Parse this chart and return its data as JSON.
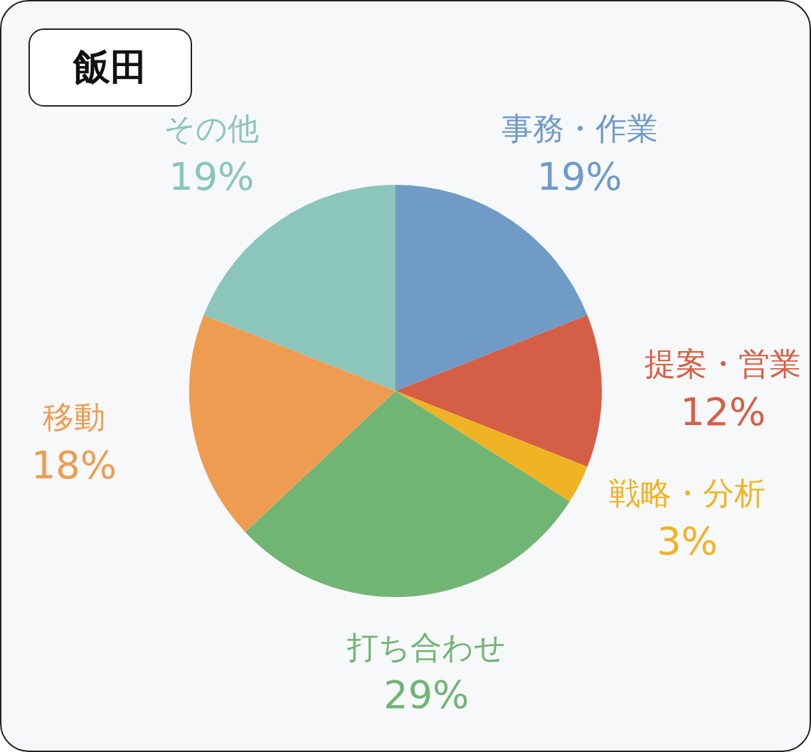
{
  "chart_data": {
    "type": "pie",
    "title": "飯田",
    "categories": [
      "事務・作業",
      "提案・営業",
      "戦略・分析",
      "打ち合わせ",
      "移動",
      "その他"
    ],
    "values": [
      19,
      12,
      3,
      29,
      18,
      19
    ],
    "colors": [
      "#6f9bc6",
      "#d55f46",
      "#f0b323",
      "#70b574",
      "#ee9c52",
      "#8bc5bb"
    ],
    "value_labels": [
      "19%",
      "12%",
      "3%",
      "29%",
      "18%",
      "19%"
    ],
    "legend": false
  }
}
